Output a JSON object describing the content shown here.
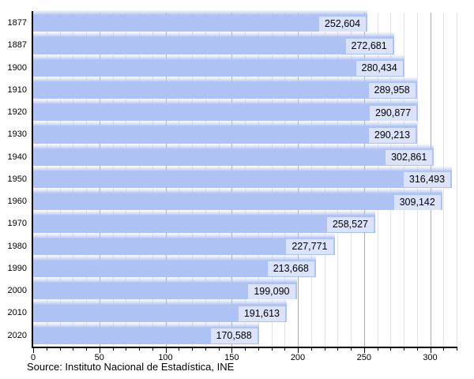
{
  "chart_data": {
    "type": "bar",
    "orientation": "horizontal",
    "title": "",
    "categories": [
      "1877",
      "1887",
      "1900",
      "1910",
      "1920",
      "1930",
      "1940",
      "1950",
      "1960",
      "1970",
      "1980",
      "1990",
      "2000",
      "2010",
      "2020"
    ],
    "values": [
      252604,
      272681,
      280434,
      289958,
      290877,
      290213,
      302861,
      316493,
      309142,
      258527,
      227771,
      213668,
      199090,
      191613,
      170588
    ],
    "value_labels": [
      "252,604",
      "272,681",
      "280,434",
      "289,958",
      "290,877",
      "290,213",
      "302,861",
      "316,493",
      "309,142",
      "258,527",
      "227,771",
      "213,668",
      "199,090",
      "191,613",
      "170,588"
    ],
    "x_axis": {
      "min": 0,
      "max": 320,
      "major_ticks": [
        0,
        50,
        100,
        150,
        200,
        250,
        300
      ],
      "minor_tick_step": 10,
      "values_scale": "axis numbers are thousands of the bar values"
    },
    "grid": "vertical minor every 10, major every 50",
    "legend": "none",
    "source": "Source: Instituto Nacional de Estadística, INE",
    "colors": {
      "bar": "#aec2f4",
      "bar_top_fade": "#ffffff",
      "value_label_box": "rgba(255,255,255,0.55)",
      "major_grid": "#ababab",
      "minor_grid": "#e3e3e3",
      "axis": "#000000",
      "text": "#000000",
      "background": "#ffffff"
    }
  }
}
